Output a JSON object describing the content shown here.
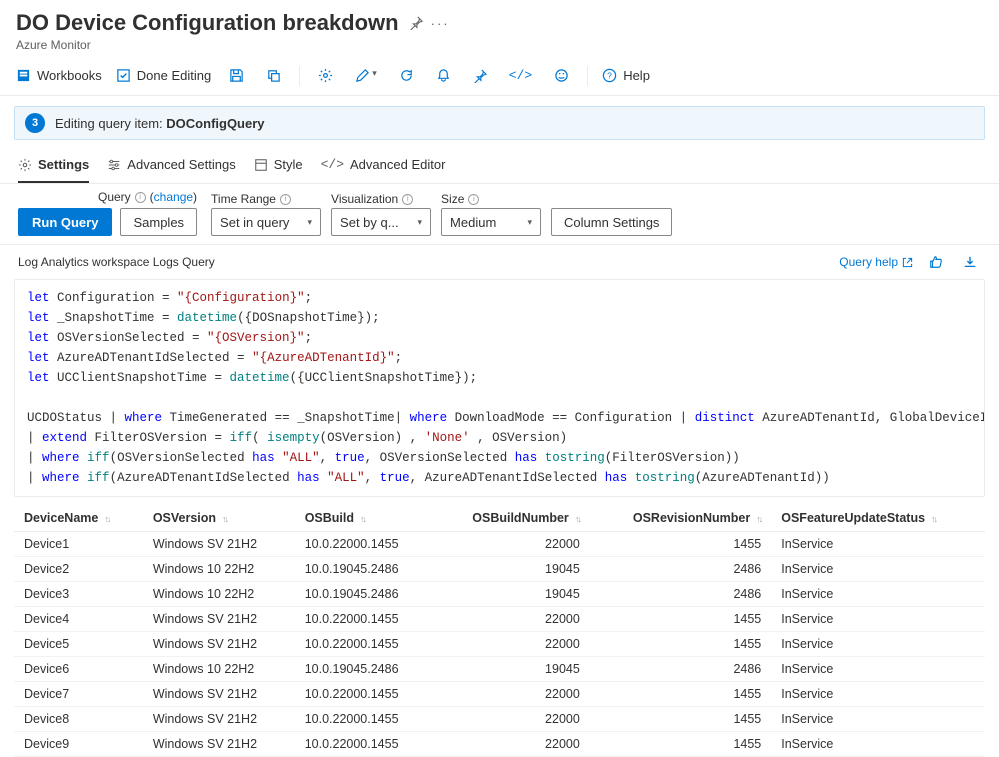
{
  "header": {
    "title": "DO Device Configuration breakdown",
    "subtitle": "Azure Monitor"
  },
  "toolbar": {
    "workbooks": "Workbooks",
    "done_editing": "Done Editing",
    "help": "Help"
  },
  "banner": {
    "step": "3",
    "text_prefix": "Editing query item:",
    "item_name": "DOConfigQuery"
  },
  "tabs": {
    "settings": "Settings",
    "advanced_settings": "Advanced Settings",
    "style": "Style",
    "advanced_editor": "Advanced Editor"
  },
  "params": {
    "query_label": "Query",
    "change": "change",
    "run_query": "Run Query",
    "samples": "Samples",
    "time_range_label": "Time Range",
    "time_range_value": "Set in query",
    "visualization_label": "Visualization",
    "visualization_value": "Set by q...",
    "size_label": "Size",
    "size_value": "Medium",
    "column_settings": "Column Settings"
  },
  "section": {
    "label": "Log Analytics workspace Logs Query",
    "query_help": "Query help"
  },
  "code_lines": [
    {
      "t": "line",
      "segs": [
        {
          "c": "kw-blue",
          "v": "let"
        },
        {
          "v": " Configuration = "
        },
        {
          "c": "str-red",
          "v": "\"{Configuration}\""
        },
        {
          "v": ";"
        }
      ]
    },
    {
      "t": "line",
      "segs": [
        {
          "c": "kw-blue",
          "v": "let"
        },
        {
          "v": " _SnapshotTime = "
        },
        {
          "c": "fn-teal",
          "v": "datetime"
        },
        {
          "v": "({DOSnapshotTime});"
        }
      ]
    },
    {
      "t": "line",
      "segs": [
        {
          "c": "kw-blue",
          "v": "let"
        },
        {
          "v": " OSVersionSelected = "
        },
        {
          "c": "str-red",
          "v": "\"{OSVersion}\""
        },
        {
          "v": ";"
        }
      ]
    },
    {
      "t": "line",
      "segs": [
        {
          "c": "kw-blue",
          "v": "let"
        },
        {
          "v": " AzureADTenantIdSelected = "
        },
        {
          "c": "str-red",
          "v": "\"{AzureADTenantId}\""
        },
        {
          "v": ";"
        }
      ]
    },
    {
      "t": "line",
      "segs": [
        {
          "c": "kw-blue",
          "v": "let"
        },
        {
          "v": " UCClientSnapshotTime = "
        },
        {
          "c": "fn-teal",
          "v": "datetime"
        },
        {
          "v": "({UCClientSnapshotTime});"
        }
      ]
    },
    {
      "t": "blank"
    },
    {
      "t": "line",
      "segs": [
        {
          "v": "UCDOStatus "
        },
        {
          "c": "pipe",
          "v": "| "
        },
        {
          "c": "kw-blue",
          "v": "where"
        },
        {
          "v": " TimeGenerated == _SnapshotTime"
        },
        {
          "c": "pipe",
          "v": "| "
        },
        {
          "c": "kw-blue",
          "v": "where"
        },
        {
          "v": " DownloadMode == Configuration "
        },
        {
          "c": "pipe",
          "v": "| "
        },
        {
          "c": "kw-blue",
          "v": "distinct"
        },
        {
          "v": " AzureADTenantId, GlobalDeviceId , DeviceName , OSVersion"
        }
      ]
    },
    {
      "t": "line",
      "segs": [
        {
          "c": "pipe",
          "v": "| "
        },
        {
          "c": "kw-blue",
          "v": "extend"
        },
        {
          "v": " FilterOSVersion = "
        },
        {
          "c": "fn-teal",
          "v": "iff"
        },
        {
          "v": "( "
        },
        {
          "c": "fn-teal",
          "v": "isempty"
        },
        {
          "v": "(OSVersion) , "
        },
        {
          "c": "str-red",
          "v": "'None'"
        },
        {
          "v": " , OSVersion)"
        }
      ]
    },
    {
      "t": "line",
      "segs": [
        {
          "c": "pipe",
          "v": "| "
        },
        {
          "c": "kw-blue",
          "v": "where"
        },
        {
          "v": " "
        },
        {
          "c": "fn-teal",
          "v": "iff"
        },
        {
          "v": "(OSVersionSelected "
        },
        {
          "c": "kw-blue",
          "v": "has"
        },
        {
          "v": " "
        },
        {
          "c": "str-red",
          "v": "\"ALL\""
        },
        {
          "v": ", "
        },
        {
          "c": "kw-blue",
          "v": "true"
        },
        {
          "v": ", OSVersionSelected "
        },
        {
          "c": "kw-blue",
          "v": "has"
        },
        {
          "v": " "
        },
        {
          "c": "fn-teal",
          "v": "tostring"
        },
        {
          "v": "(FilterOSVersion))"
        }
      ]
    },
    {
      "t": "line",
      "segs": [
        {
          "c": "pipe",
          "v": "| "
        },
        {
          "c": "kw-blue",
          "v": "where"
        },
        {
          "v": " "
        },
        {
          "c": "fn-teal",
          "v": "iff"
        },
        {
          "v": "(AzureADTenantIdSelected "
        },
        {
          "c": "kw-blue",
          "v": "has"
        },
        {
          "v": " "
        },
        {
          "c": "str-red",
          "v": "\"ALL\""
        },
        {
          "v": ", "
        },
        {
          "c": "kw-blue",
          "v": "true"
        },
        {
          "v": ", AzureADTenantIdSelected "
        },
        {
          "c": "kw-blue",
          "v": "has"
        },
        {
          "v": " "
        },
        {
          "c": "fn-teal",
          "v": "tostring"
        },
        {
          "v": "(AzureADTenantId))"
        }
      ]
    }
  ],
  "table": {
    "columns": [
      {
        "key": "DeviceName",
        "label": "DeviceName",
        "type": "text"
      },
      {
        "key": "OSVersion",
        "label": "OSVersion",
        "type": "text"
      },
      {
        "key": "OSBuild",
        "label": "OSBuild",
        "type": "text"
      },
      {
        "key": "OSBuildNumber",
        "label": "OSBuildNumber",
        "type": "num"
      },
      {
        "key": "OSRevisionNumber",
        "label": "OSRevisionNumber",
        "type": "num"
      },
      {
        "key": "OSFeatureUpdateStatus",
        "label": "OSFeatureUpdateStatus",
        "type": "text"
      }
    ],
    "rows": [
      {
        "DeviceName": "Device1",
        "OSVersion": "Windows SV 21H2",
        "OSBuild": "10.0.22000.1455",
        "OSBuildNumber": "22000",
        "OSRevisionNumber": "1455",
        "OSFeatureUpdateStatus": "InService"
      },
      {
        "DeviceName": "Device2",
        "OSVersion": "Windows 10 22H2",
        "OSBuild": "10.0.19045.2486",
        "OSBuildNumber": "19045",
        "OSRevisionNumber": "2486",
        "OSFeatureUpdateStatus": "InService"
      },
      {
        "DeviceName": "Device3",
        "OSVersion": "Windows 10 22H2",
        "OSBuild": "10.0.19045.2486",
        "OSBuildNumber": "19045",
        "OSRevisionNumber": "2486",
        "OSFeatureUpdateStatus": "InService"
      },
      {
        "DeviceName": "Device4",
        "OSVersion": "Windows SV 21H2",
        "OSBuild": "10.0.22000.1455",
        "OSBuildNumber": "22000",
        "OSRevisionNumber": "1455",
        "OSFeatureUpdateStatus": "InService"
      },
      {
        "DeviceName": "Device5",
        "OSVersion": "Windows SV 21H2",
        "OSBuild": "10.0.22000.1455",
        "OSBuildNumber": "22000",
        "OSRevisionNumber": "1455",
        "OSFeatureUpdateStatus": "InService"
      },
      {
        "DeviceName": "Device6",
        "OSVersion": "Windows 10 22H2",
        "OSBuild": "10.0.19045.2486",
        "OSBuildNumber": "19045",
        "OSRevisionNumber": "2486",
        "OSFeatureUpdateStatus": "InService"
      },
      {
        "DeviceName": "Device7",
        "OSVersion": "Windows SV 21H2",
        "OSBuild": "10.0.22000.1455",
        "OSBuildNumber": "22000",
        "OSRevisionNumber": "1455",
        "OSFeatureUpdateStatus": "InService"
      },
      {
        "DeviceName": "Device8",
        "OSVersion": "Windows SV 21H2",
        "OSBuild": "10.0.22000.1455",
        "OSBuildNumber": "22000",
        "OSRevisionNumber": "1455",
        "OSFeatureUpdateStatus": "InService"
      },
      {
        "DeviceName": "Device9",
        "OSVersion": "Windows SV 21H2",
        "OSBuild": "10.0.22000.1455",
        "OSBuildNumber": "22000",
        "OSRevisionNumber": "1455",
        "OSFeatureUpdateStatus": "InService"
      }
    ]
  }
}
